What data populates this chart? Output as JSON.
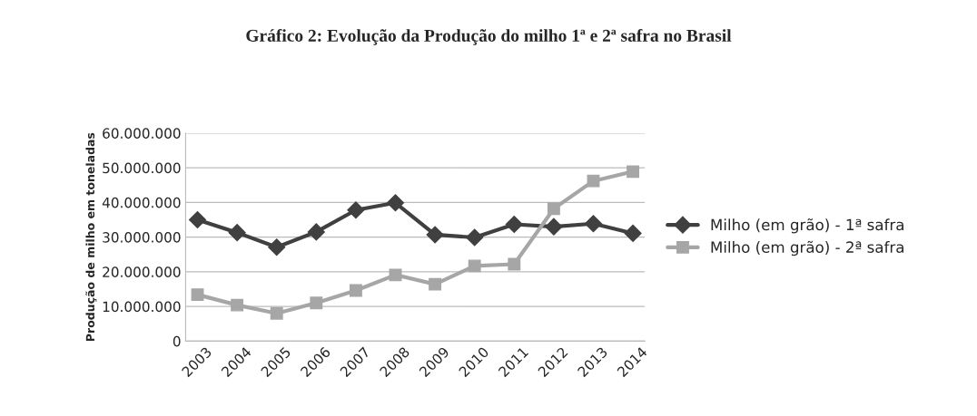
{
  "chart_data": {
    "type": "line",
    "title": "Gráfico 2: Evolução da Produção do milho 1ª e 2ª safra no Brasil",
    "ylabel": "Produção de milho em toneladas",
    "categories": [
      "2003",
      "2004",
      "2005",
      "2006",
      "2007",
      "2008",
      "2009",
      "2010",
      "2011",
      "2012",
      "2013",
      "2014"
    ],
    "series": [
      {
        "name": "Milho (em grão) - 1ª safra",
        "color": "#404040",
        "marker": "diamond",
        "values": [
          35000000,
          31300000,
          27100000,
          31500000,
          37800000,
          39900000,
          30700000,
          29900000,
          33700000,
          33000000,
          33900000,
          31100000
        ]
      },
      {
        "name": "Milho (em grão) - 2ª safra",
        "color": "#a6a6a6",
        "marker": "square",
        "values": [
          13400000,
          10400000,
          8000000,
          11000000,
          14600000,
          19100000,
          16400000,
          21700000,
          22200000,
          38200000,
          46200000,
          48900000
        ]
      }
    ],
    "ylim": [
      0,
      60000000
    ],
    "yticks": [
      {
        "value": 0,
        "label": "0"
      },
      {
        "value": 10000000,
        "label": "10.000.000"
      },
      {
        "value": 20000000,
        "label": "20.000.000"
      },
      {
        "value": 30000000,
        "label": "30.000.000"
      },
      {
        "value": 40000000,
        "label": "40.000.000"
      },
      {
        "value": 50000000,
        "label": "50.000.000"
      },
      {
        "value": 60000000,
        "label": "60.000.000"
      }
    ],
    "grid": "y",
    "legend": "right"
  }
}
